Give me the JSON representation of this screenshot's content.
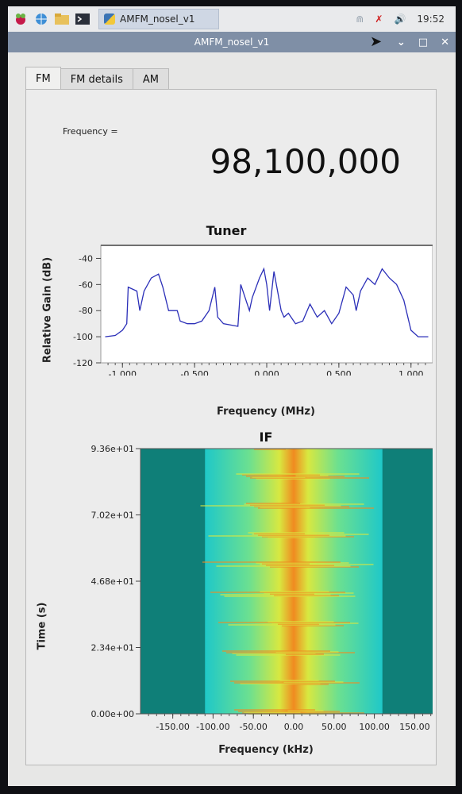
{
  "taskbar": {
    "task_label": "AMFM_nosel_v1",
    "clock": "19:52",
    "icons": [
      "raspberry-icon",
      "globe-icon",
      "folder-icon",
      "terminal-icon",
      "bluetooth-icon",
      "network-icon",
      "volume-icon"
    ]
  },
  "window": {
    "title": "AMFM_nosel_v1"
  },
  "tabs": [
    {
      "label": "FM"
    },
    {
      "label": "FM details"
    },
    {
      "label": "AM"
    }
  ],
  "fm": {
    "frequency_label": "Frequency =",
    "frequency_value": "98,100,000"
  },
  "colors": {
    "trace": "#2b2fb8",
    "panel": "#ececec",
    "titlebar": "#7f8fa6"
  },
  "chart_data": [
    {
      "type": "line",
      "title": "Tuner",
      "xlabel": "Frequency (MHz)",
      "ylabel": "Relative Gain (dB)",
      "xlim": [
        -1.15,
        1.15
      ],
      "ylim": [
        -120,
        -30
      ],
      "xticks": [
        "-1.000",
        "-0.500",
        "0.000",
        "0.500",
        "1.000"
      ],
      "xtick_values": [
        -1.0,
        -0.5,
        0.0,
        0.5,
        1.0
      ],
      "yticks": [
        "-40",
        "-60",
        "-80",
        "-100",
        "-120"
      ],
      "ytick_values": [
        -40,
        -60,
        -80,
        -100,
        -120
      ],
      "x": [
        -1.12,
        -1.05,
        -1.0,
        -0.97,
        -0.96,
        -0.9,
        -0.88,
        -0.85,
        -0.8,
        -0.75,
        -0.72,
        -0.68,
        -0.62,
        -0.6,
        -0.55,
        -0.5,
        -0.45,
        -0.4,
        -0.36,
        -0.34,
        -0.3,
        -0.2,
        -0.18,
        -0.12,
        -0.1,
        -0.05,
        -0.02,
        0.0,
        0.02,
        0.05,
        0.1,
        0.12,
        0.15,
        0.2,
        0.25,
        0.3,
        0.35,
        0.4,
        0.45,
        0.5,
        0.55,
        0.6,
        0.62,
        0.65,
        0.7,
        0.75,
        0.8,
        0.85,
        0.9,
        0.95,
        1.0,
        1.05,
        1.12
      ],
      "y": [
        -100,
        -99,
        -95,
        -90,
        -62,
        -65,
        -80,
        -65,
        -55,
        -52,
        -62,
        -80,
        -80,
        -88,
        -90,
        -90,
        -88,
        -80,
        -62,
        -85,
        -90,
        -92,
        -60,
        -80,
        -70,
        -55,
        -48,
        -60,
        -80,
        -50,
        -80,
        -85,
        -82,
        -90,
        -88,
        -75,
        -85,
        -80,
        -90,
        -82,
        -62,
        -68,
        -80,
        -65,
        -55,
        -60,
        -48,
        -55,
        -60,
        -72,
        -95,
        -100,
        -100
      ],
      "series": []
    },
    {
      "type": "heatmap",
      "title": "IF",
      "xlabel": "Frequency (kHz)",
      "ylabel": "Time (s)",
      "xlim": [
        -190,
        190
      ],
      "ylim": [
        0,
        93.6
      ],
      "xticks": [
        "-150.00",
        "-100.00",
        "-50.00",
        "0.00",
        "50.00",
        "100.00",
        "150.00"
      ],
      "xtick_values": [
        -150,
        -100,
        -50,
        0,
        50,
        100,
        150
      ],
      "yticks": [
        "0.00e+00",
        "2.34e+01",
        "4.68e+01",
        "7.02e+01",
        "9.36e+01"
      ],
      "ytick_values": [
        0,
        23.4,
        46.8,
        70.2,
        93.6
      ],
      "passband_khz": [
        -110,
        110
      ],
      "colormap": [
        "#0f7f78",
        "#1fc8c8",
        "#6ce090",
        "#d8e840",
        "#f08a20"
      ]
    }
  ]
}
